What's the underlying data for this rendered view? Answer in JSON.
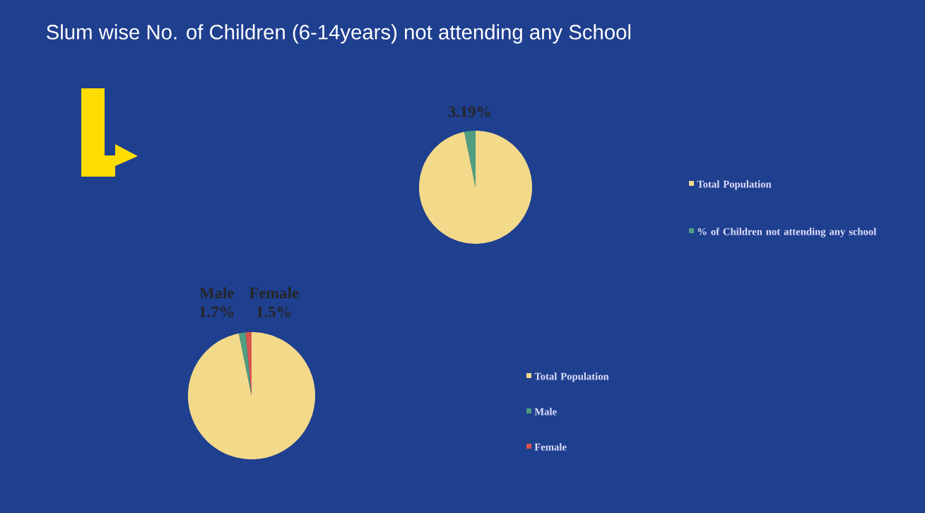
{
  "chart_data": [
    {
      "type": "pie",
      "title": "Slum wise No. of Children (6-14years) not attending any School",
      "categories": [
        "Total Population",
        "% of Children not attending any school"
      ],
      "values": [
        96.81,
        3.19
      ],
      "colors": [
        "#f3d98a",
        "#4f9e80"
      ],
      "value_labels": [
        null,
        "3.19%"
      ],
      "legend": "right"
    },
    {
      "type": "pie",
      "categories": [
        "Total Population",
        "Male",
        "Female"
      ],
      "values": [
        96.8,
        1.7,
        1.5
      ],
      "colors": [
        "#f3d98a",
        "#4f9e80",
        "#d9534f"
      ],
      "value_labels": [
        null,
        "Male 1.7%",
        "Female 1.5%"
      ],
      "legend": "right"
    }
  ]
}
